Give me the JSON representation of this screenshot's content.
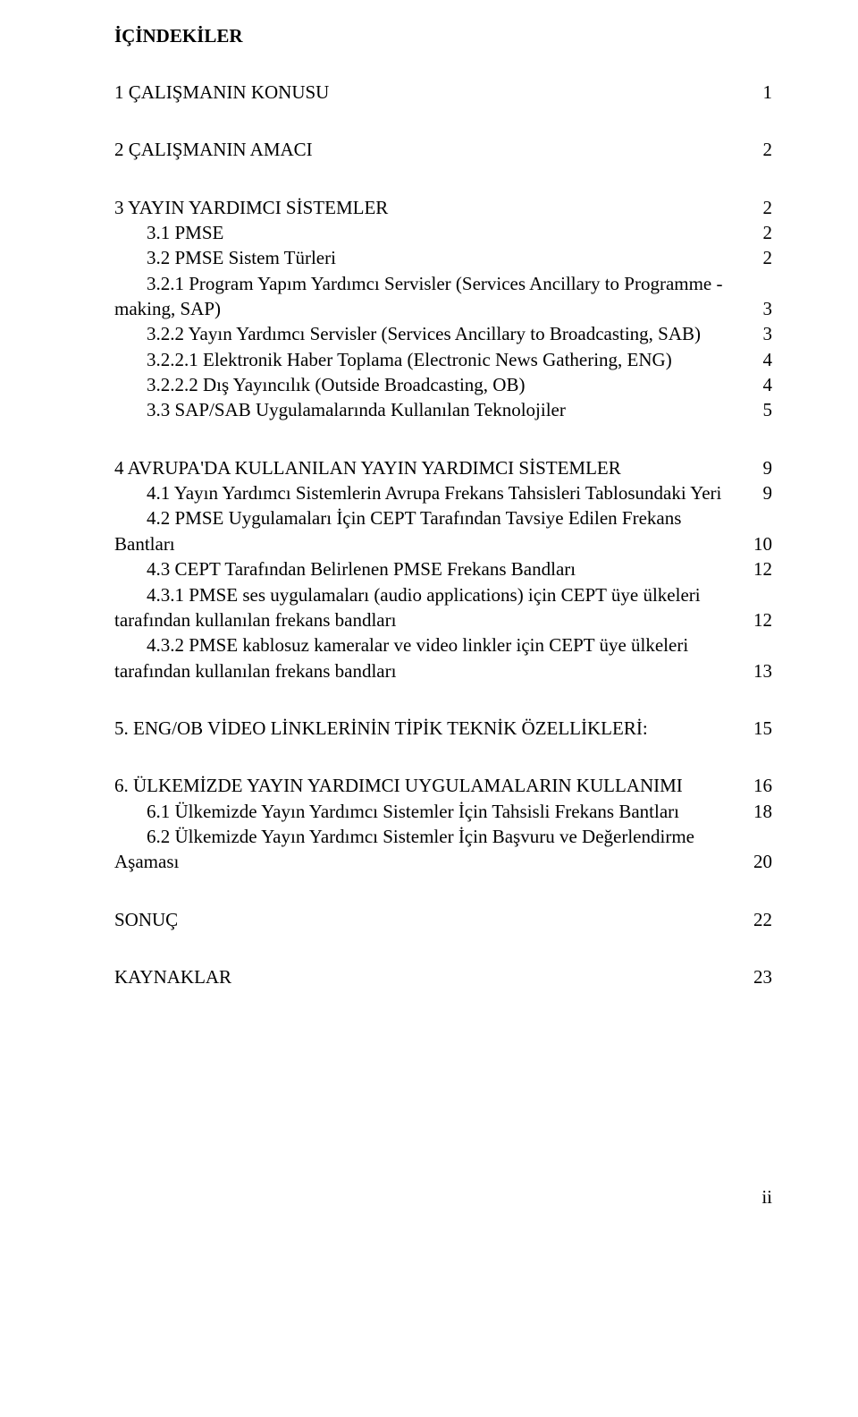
{
  "heading": "İÇİNDEKİLER",
  "footer": "ii",
  "entries": {
    "e1": {
      "label": "1 ÇALIŞMANIN KONUSU",
      "page": "1"
    },
    "e2": {
      "label": "2 ÇALIŞMANIN AMACI",
      "page": "2"
    },
    "e3": {
      "label": "3 YAYIN YARDIMCI SİSTEMLER",
      "page": "2"
    },
    "e31": {
      "label": "3.1 PMSE",
      "page": "2"
    },
    "e32": {
      "label": "3.2 PMSE Sistem Türleri",
      "page": "2"
    },
    "e321_line1": "3.2.1 Program Yapım Yardımcı Servisler (Services Ancillary to Programme -",
    "e321_line2": {
      "label": "making, SAP)",
      "page": "3"
    },
    "e322": {
      "label": "3.2.2 Yayın Yardımcı Servisler (Services Ancillary to Broadcasting, SAB)",
      "page": "3"
    },
    "e3221": {
      "label": "3.2.2.1 Elektronik Haber Toplama (Electronic News Gathering, ENG)",
      "page": "4"
    },
    "e3222": {
      "label": "3.2.2.2 Dış Yayıncılık (Outside Broadcasting, OB)",
      "page": "4"
    },
    "e33": {
      "label": "3.3  SAP/SAB Uygulamalarında Kullanılan Teknolojiler",
      "page": "5"
    },
    "e4": {
      "label": "4 AVRUPA'DA KULLANILAN YAYIN YARDIMCI SİSTEMLER",
      "page": "9"
    },
    "e41": {
      "label": "4.1 Yayın Yardımcı Sistemlerin Avrupa Frekans Tahsisleri Tablosundaki Yeri",
      "page": "9"
    },
    "e42_line1": "4.2 PMSE Uygulamaları İçin CEPT Tarafından Tavsiye Edilen Frekans",
    "e42_line2": {
      "label": "Bantları",
      "page": "10"
    },
    "e43": {
      "label": "4.3  CEPT Tarafından Belirlenen PMSE Frekans Bandları",
      "page": "12"
    },
    "e431_line1": "4.3.1  PMSE ses uygulamaları (audio applications) için CEPT üye ülkeleri",
    "e431_line2": {
      "label": "tarafından kullanılan frekans bandları",
      "page": "12"
    },
    "e432_line1": "4.3.2  PMSE kablosuz kameralar ve video linkler için CEPT üye ülkeleri",
    "e432_line2": {
      "label": "tarafından kullanılan frekans bandları",
      "page": "13"
    },
    "e5": {
      "label": "5. ENG/OB VİDEO LİNKLERİNİN TİPİK TEKNİK ÖZELLİKLERİ:",
      "page": "15"
    },
    "e6": {
      "label": "6. ÜLKEMİZDE YAYIN YARDIMCI UYGULAMALARIN KULLANIMI",
      "page": "16"
    },
    "e61": {
      "label": "6.1 Ülkemizde Yayın Yardımcı Sistemler İçin Tahsisli Frekans Bantları",
      "page": "18"
    },
    "e62_line1": "6.2 Ülkemizde Yayın Yardımcı Sistemler İçin Başvuru ve Değerlendirme",
    "e62_line2": {
      "label": "Aşaması",
      "page": "20"
    },
    "e_sonuc": {
      "label": "SONUÇ",
      "page": "22"
    },
    "e_kaynak": {
      "label": "KAYNAKLAR",
      "page": "23"
    }
  }
}
